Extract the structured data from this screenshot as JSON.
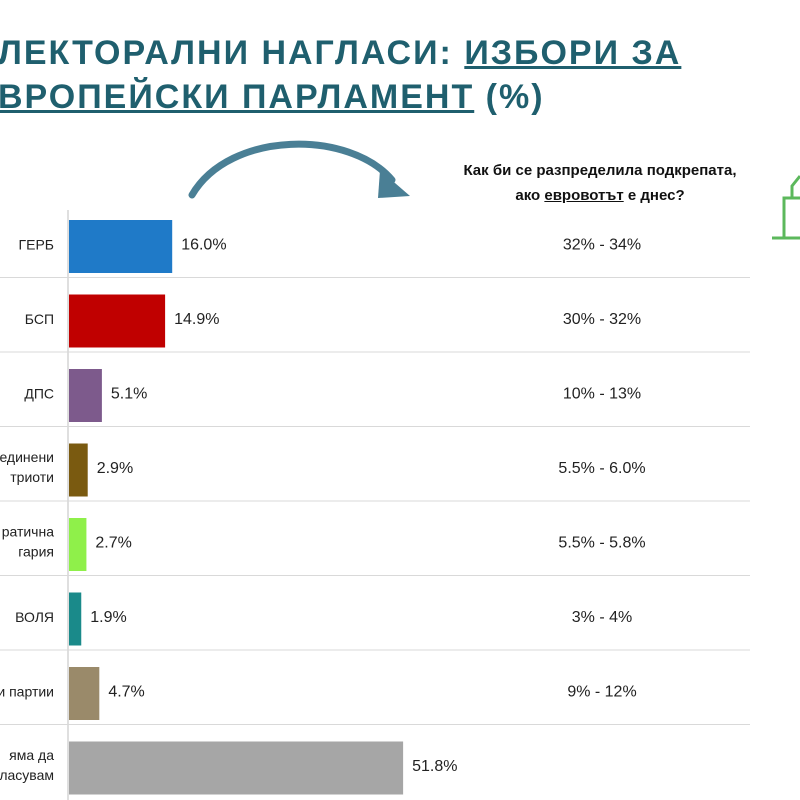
{
  "header": {
    "title_line1_a": "ЛЕКТОРАЛНИ НАГЛАСИ: ",
    "title_line1_b": "ИЗБОРИ ЗА",
    "title_line2_a": "ВРОПЕЙСКИ ПАРЛАМЕНТ",
    "title_line2_b": " (%)"
  },
  "question": {
    "line1": "Как би се разпределила подкрепата,",
    "line2_a": "ако ",
    "line2_b": "евровотът",
    "line2_c": " е днес?"
  },
  "colors": {
    "title": "#1f5f6e",
    "arrow": "#4a7f95",
    "grid": "#d9d9d9",
    "icon": "#5cb85c"
  },
  "chart_data": {
    "type": "bar",
    "orientation": "horizontal",
    "categories": [
      [
        "ГЕРБ"
      ],
      [
        "БСП"
      ],
      [
        "ДПС"
      ],
      [
        "единени",
        "триоти"
      ],
      [
        "ратична",
        "гария"
      ],
      [
        "ВОЛЯ"
      ],
      [
        "и партии"
      ],
      [
        "яма да",
        "ласувам"
      ]
    ],
    "values": [
      16.0,
      14.9,
      5.1,
      2.9,
      2.7,
      1.9,
      4.7,
      51.8
    ],
    "value_labels": [
      "16.0%",
      "14.9%",
      "5.1%",
      "2.9%",
      "2.7%",
      "1.9%",
      "4.7%",
      "51.8%"
    ],
    "bar_colors": [
      "#1f7ac8",
      "#c00000",
      "#7d5a8c",
      "#7a5a10",
      "#8ff04a",
      "#1a8a8a",
      "#9a8a6a",
      "#a6a6a6"
    ],
    "projections": [
      "32% - 34%",
      "30% - 32%",
      "10% - 13%",
      "5.5% - 6.0%",
      "5.5% - 5.8%",
      "3% - 4%",
      "9% - 12%",
      ""
    ],
    "xlim": [
      0,
      60
    ]
  }
}
